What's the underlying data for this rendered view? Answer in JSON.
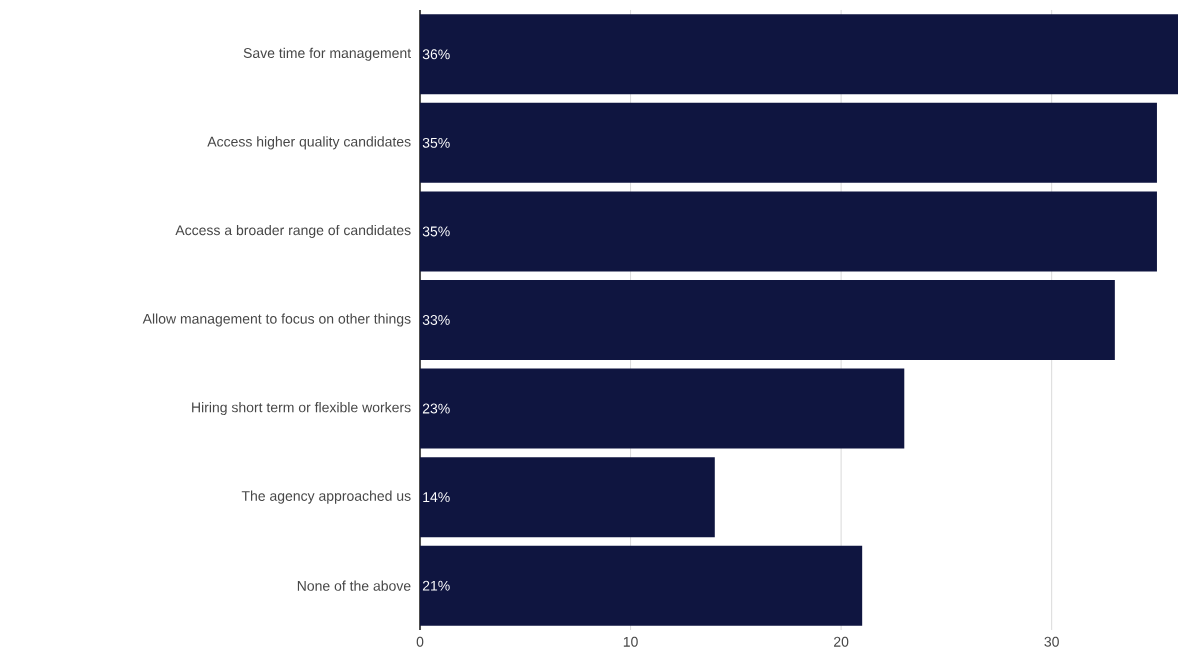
{
  "chart_data": {
    "type": "bar",
    "orientation": "horizontal",
    "categories": [
      "Save time for management",
      "Access higher quality candidates",
      "Access a broader range of candidates",
      "Allow management to focus on other things",
      "Hiring short term or flexible workers",
      "The agency approached us",
      "None of the above"
    ],
    "values": [
      36,
      35,
      35,
      33,
      23,
      14,
      21
    ],
    "value_labels": [
      "36%",
      "35%",
      "35%",
      "33%",
      "23%",
      "14%",
      "21%"
    ],
    "color": "#0f1540",
    "xlim": [
      0,
      36
    ],
    "xticks": [
      0,
      10,
      20,
      30
    ],
    "grid": "x"
  }
}
